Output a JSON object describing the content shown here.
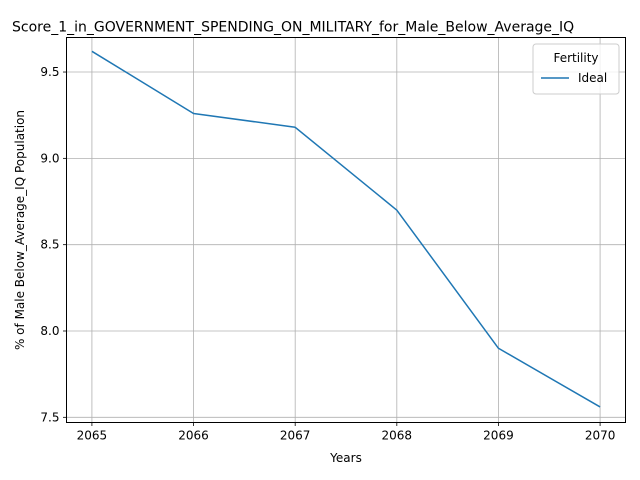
{
  "chart_data": {
    "type": "line",
    "title": "Score_1_in_GOVERNMENT_SPENDING_ON_MILITARY_for_Male_Below_Average_IQ",
    "xlabel": "Years",
    "ylabel": "% of Male Below_Average_IQ Population",
    "x": [
      2065,
      2066,
      2067,
      2068,
      2069,
      2070
    ],
    "xticks": [
      "2065",
      "2066",
      "2067",
      "2068",
      "2069",
      "2070"
    ],
    "yticks": [
      "7.5",
      "8.0",
      "8.5",
      "9.0",
      "9.5"
    ],
    "xlim": [
      2064.75,
      2070.25
    ],
    "ylim": [
      7.47,
      9.7
    ],
    "grid": true,
    "legend": {
      "title": "Fertility",
      "placement": "top-right"
    },
    "series": [
      {
        "name": "Ideal",
        "color": "#1f77b4",
        "values": [
          9.62,
          9.26,
          9.18,
          8.7,
          7.9,
          7.56
        ]
      }
    ]
  }
}
